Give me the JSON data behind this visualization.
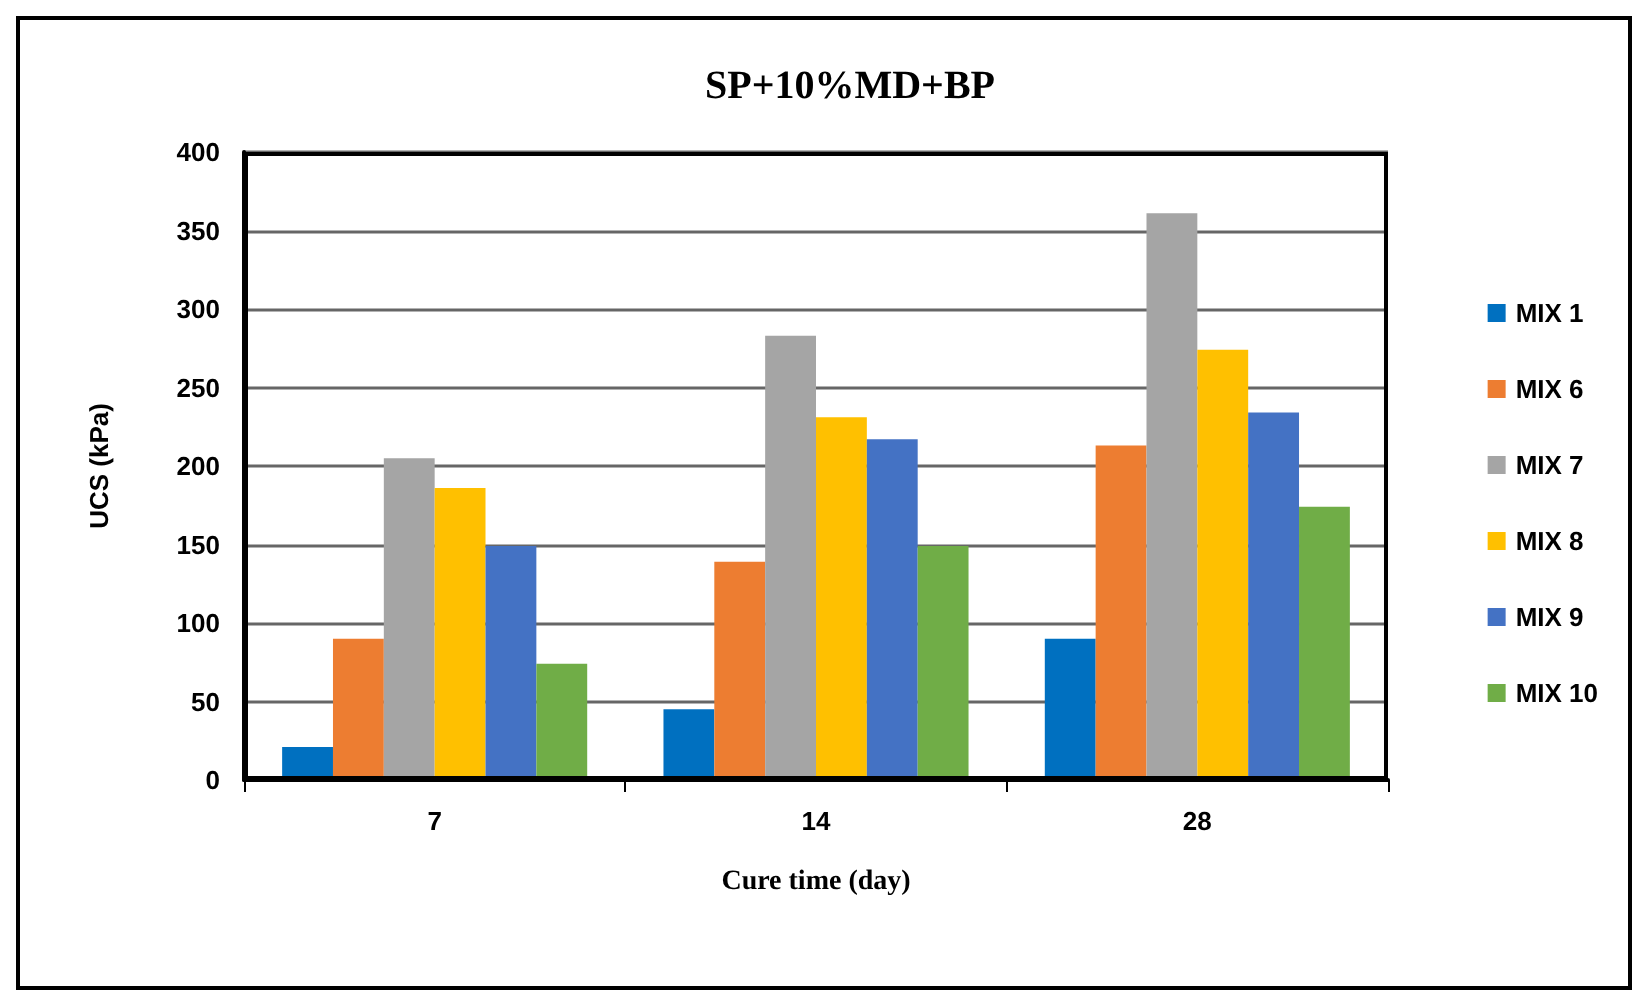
{
  "chart_data": {
    "type": "bar",
    "title": "SP+10%MD+BP",
    "xlabel": "Cure time (day)",
    "ylabel": "UCS (kPa)",
    "categories": [
      "7",
      "14",
      "28"
    ],
    "series": [
      {
        "name": "MIX 1",
        "color": "#0070c0",
        "values": [
          21,
          45,
          90
        ]
      },
      {
        "name": "MIX 6",
        "color": "#ed7d31",
        "values": [
          90,
          139,
          213
        ]
      },
      {
        "name": "MIX 7",
        "color": "#a5a5a5",
        "values": [
          205,
          283,
          361
        ]
      },
      {
        "name": "MIX 8",
        "color": "#ffc000",
        "values": [
          186,
          231,
          274
        ]
      },
      {
        "name": "MIX 9",
        "color": "#4472c4",
        "values": [
          149,
          217,
          234
        ]
      },
      {
        "name": "MIX 10",
        "color": "#70ad47",
        "values": [
          74,
          149,
          174
        ]
      }
    ],
    "ylim": [
      0,
      400
    ],
    "yticks": [
      0,
      50,
      100,
      150,
      200,
      250,
      300,
      350,
      400
    ],
    "grid": "y",
    "legend": "right"
  }
}
